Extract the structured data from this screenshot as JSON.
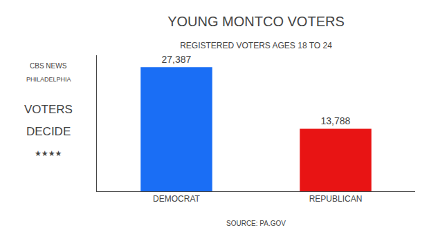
{
  "chart_data": {
    "type": "bar",
    "title": "YOUNG MONTCO VOTERS",
    "subtitle": "REGISTERED VOTERS AGES 18 TO 24",
    "categories": [
      "DEMOCRAT",
      "REPUBLICAN"
    ],
    "values": [
      27387,
      13788
    ],
    "value_labels": [
      "27,387",
      "13,788"
    ],
    "data_labels": true,
    "colors": [
      "#1a6ef5",
      "#e81414"
    ],
    "ylim": [
      0,
      30000
    ],
    "grid": false,
    "tick_labels": "x",
    "annotations": [
      "CBS NEWS",
      "PHILADELPHIA",
      "VOTERS",
      "DECIDE",
      "★★★★",
      "SOURCE: PA.GOV"
    ]
  }
}
